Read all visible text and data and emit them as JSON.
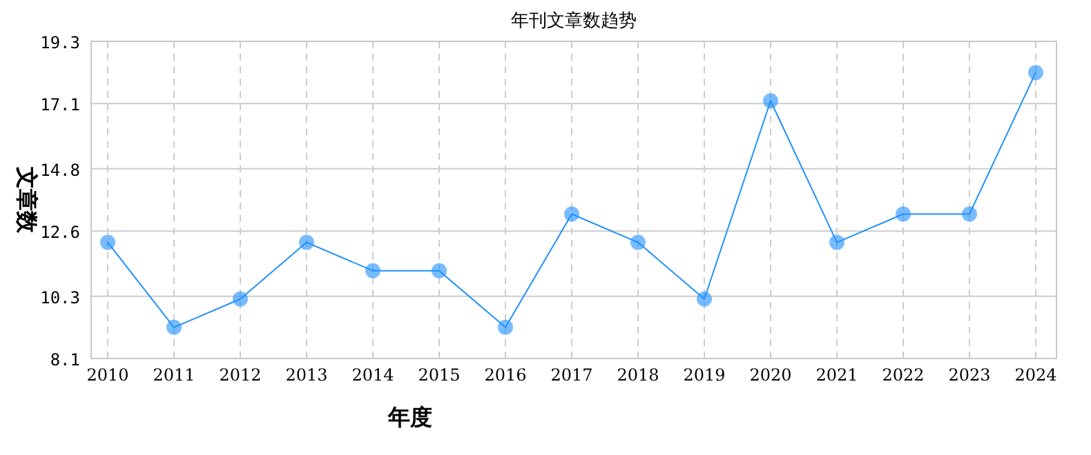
{
  "chart_data": {
    "type": "line",
    "title": "年刊文章数趋势",
    "xlabel": "年度",
    "ylabel": "文章数",
    "categories": [
      "2010",
      "2011",
      "2012",
      "2013",
      "2014",
      "2015",
      "2016",
      "2017",
      "2018",
      "2019",
      "2020",
      "2021",
      "2022",
      "2023",
      "2024"
    ],
    "series": [
      {
        "color": "#1e90ff",
        "values": [
          12.2,
          9.2,
          10.2,
          12.2,
          11.2,
          11.2,
          9.2,
          13.2,
          12.2,
          10.2,
          17.2,
          12.2,
          13.2,
          13.2,
          18.2
        ]
      }
    ],
    "ylim": [
      8.1,
      19.3
    ],
    "yticks": [
      8.1,
      10.3,
      12.6,
      14.8,
      17.1,
      19.3
    ],
    "grid": true,
    "marker": "circle",
    "line_style": "solid"
  }
}
